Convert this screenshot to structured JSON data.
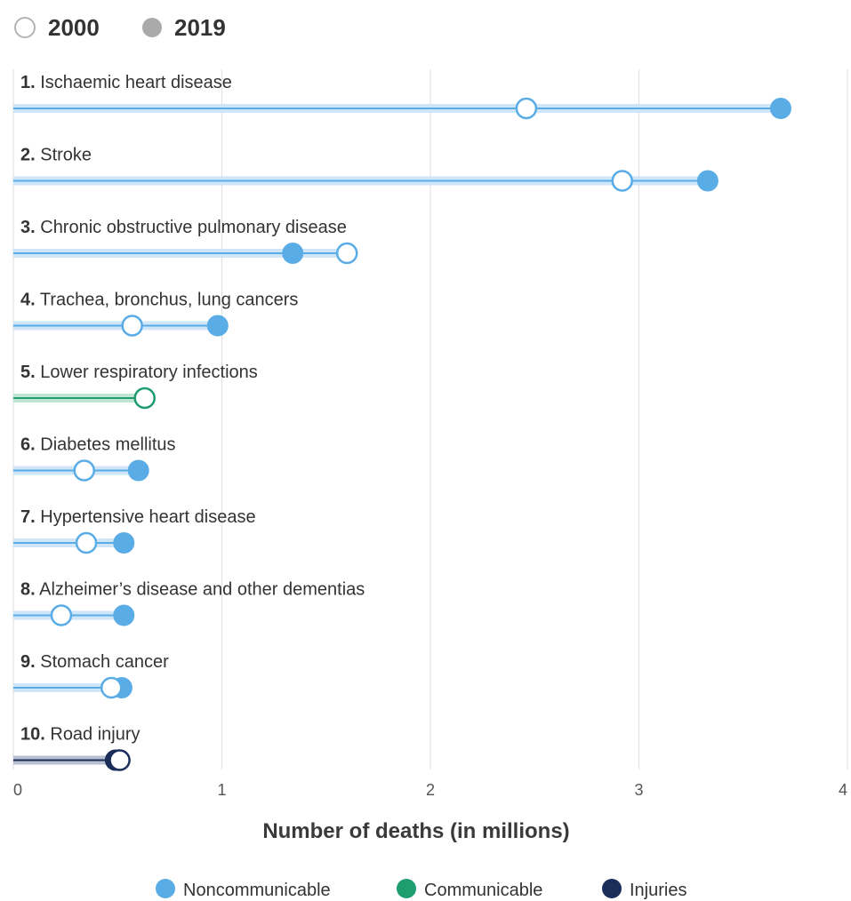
{
  "chart_data": {
    "type": "dumbbell",
    "year_legend": [
      {
        "label": "2000",
        "style": "open"
      },
      {
        "label": "2019",
        "style": "filled"
      }
    ],
    "xlabel": "Number of deaths (in millions)",
    "xlim": [
      0,
      4
    ],
    "xticks": [
      "0",
      "1",
      "2",
      "3",
      "4"
    ],
    "grid": true,
    "category_legend": [
      {
        "name": "Noncommunicable",
        "color": "#5aace6"
      },
      {
        "name": "Communicable",
        "color": "#1e9e6e"
      },
      {
        "name": "Injuries",
        "color": "#1b2e5a"
      }
    ],
    "categories": [
      {
        "rank": "1.",
        "name": "Ischaemic heart disease",
        "group": "Noncommunicable",
        "v2000": 2.46,
        "v2019": 3.68
      },
      {
        "rank": "2.",
        "name": "Stroke",
        "group": "Noncommunicable",
        "v2000": 2.92,
        "v2019": 3.33
      },
      {
        "rank": "3.",
        "name": "Chronic obstructive pulmonary disease",
        "group": "Noncommunicable",
        "v2000": 1.6,
        "v2019": 1.34
      },
      {
        "rank": "4.",
        "name": "Trachea, bronchus, lung cancers",
        "group": "Noncommunicable",
        "v2000": 0.57,
        "v2019": 0.98
      },
      {
        "rank": "5.",
        "name": "Lower respiratory infections",
        "group": "Communicable",
        "v2000": 0.63,
        "v2019": 0.63
      },
      {
        "rank": "6.",
        "name": "Diabetes mellitus",
        "group": "Noncommunicable",
        "v2000": 0.34,
        "v2019": 0.6
      },
      {
        "rank": "7.",
        "name": "Hypertensive heart disease",
        "group": "Noncommunicable",
        "v2000": 0.35,
        "v2019": 0.53
      },
      {
        "rank": "8.",
        "name": "Alzheimer’s disease and other dementias",
        "group": "Noncommunicable",
        "v2000": 0.23,
        "v2019": 0.53
      },
      {
        "rank": "9.",
        "name": "Stomach cancer",
        "group": "Noncommunicable",
        "v2000": 0.47,
        "v2019": 0.52
      },
      {
        "rank": "10.",
        "name": "Road injury",
        "group": "Injuries",
        "v2000": 0.51,
        "v2019": 0.49
      }
    ]
  }
}
